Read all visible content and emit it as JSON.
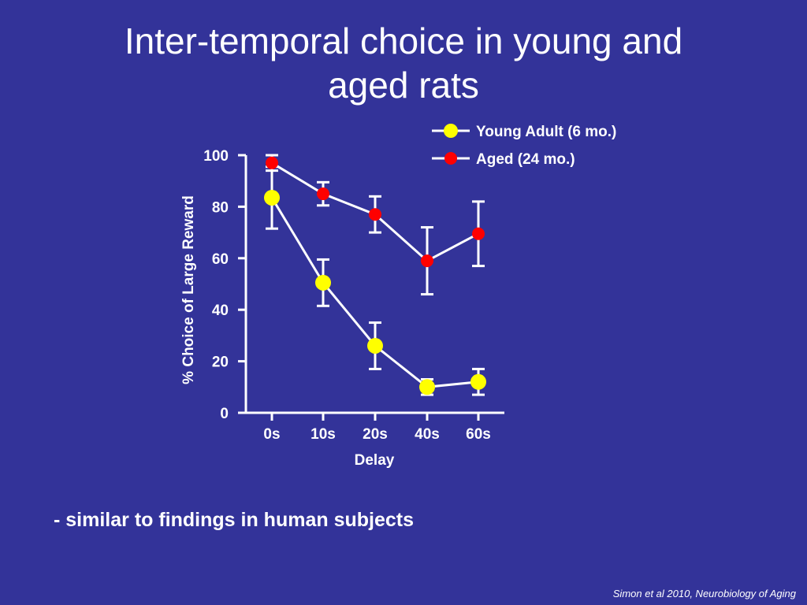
{
  "slide": {
    "title_line1": "Inter-temporal choice in young and",
    "title_line2": "aged rats",
    "bullet": "- similar to findings in human subjects",
    "citation": "Simon et al 2010, Neurobiology of Aging"
  },
  "colors": {
    "background": "#333399",
    "young_marker": "#ffff00",
    "aged_marker": "#ff0000",
    "line": "#ffffff"
  },
  "chart_data": {
    "type": "line",
    "title": "",
    "xlabel": "Delay",
    "ylabel": "% Choice of Large Reward",
    "categories": [
      "0s",
      "10s",
      "20s",
      "40s",
      "60s"
    ],
    "yticks": [
      "0",
      "20",
      "40",
      "60",
      "80",
      "100"
    ],
    "ylim": [
      0,
      100
    ],
    "legend_position": "top-right",
    "series": [
      {
        "name": "Young Adult (6 mo.)",
        "color": "#ffff00",
        "values": [
          83.5,
          50.5,
          26,
          10,
          12
        ],
        "errors": [
          12,
          9,
          9,
          3,
          5
        ]
      },
      {
        "name": "Aged (24 mo.)",
        "color": "#ff0000",
        "values": [
          97,
          85,
          77,
          59,
          69.5
        ],
        "errors": [
          3,
          4.5,
          7,
          13,
          12.5
        ]
      }
    ]
  }
}
